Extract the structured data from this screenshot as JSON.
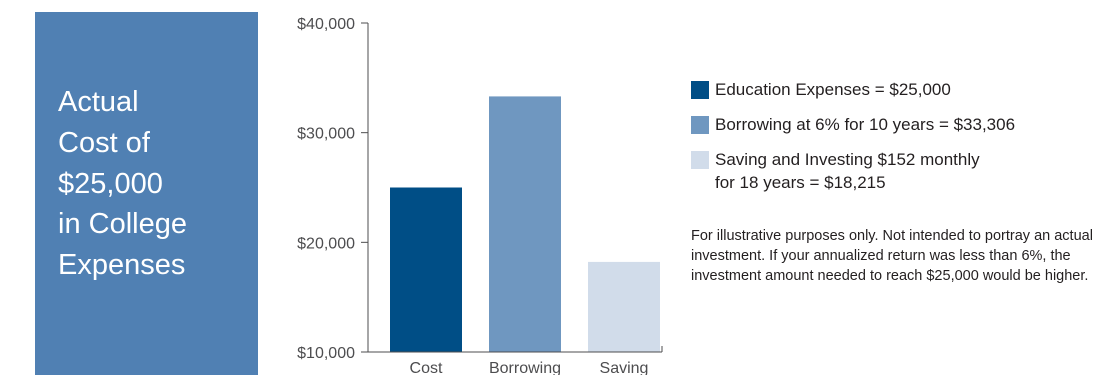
{
  "title_panel": {
    "text": "Actual\nCost of\n$25,000\nin College\nExpenses",
    "background": "#5080b3"
  },
  "chart_data": {
    "type": "bar",
    "categories": [
      "Cost",
      "Borrowing",
      "Saving"
    ],
    "values": [
      25000,
      33306,
      18215
    ],
    "colors": [
      "#004e86",
      "#6f97c0",
      "#d1dcea"
    ],
    "ylim": [
      10000,
      40000
    ],
    "yticks": [
      10000,
      20000,
      30000,
      40000
    ],
    "ytick_labels": [
      "$10,000",
      "$20,000",
      "$30,000",
      "$40,000"
    ],
    "title": "",
    "xlabel": "",
    "ylabel": "",
    "grid": false
  },
  "legend": {
    "items": [
      {
        "label": "Education Expenses = $25,000",
        "color": "#004e86"
      },
      {
        "label": "Borrowing at 6% for 10 years = $33,306",
        "color": "#6f97c0"
      },
      {
        "label": "Saving and Investing $152 monthly\nfor 18 years = $18,215",
        "color": "#d1dcea"
      }
    ]
  },
  "footnote": "For illustrative purposes only. Not intended to portray an actual investment. If your annualized return was less than 6%, the investment amount needed to reach $25,000 would be higher."
}
